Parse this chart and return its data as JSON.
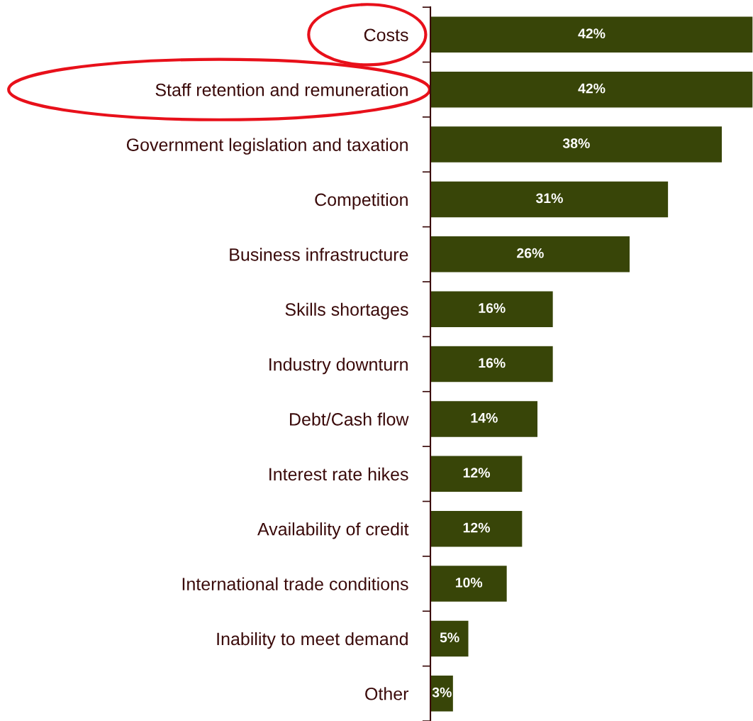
{
  "chart_data": {
    "type": "bar",
    "orientation": "horizontal",
    "categories": [
      "Costs",
      "Staff retention and remuneration",
      "Government legislation and taxation",
      "Competition",
      "Business infrastructure",
      "Skills shortages",
      "Industry downturn",
      "Debt/Cash flow",
      "Interest rate hikes",
      "Availability of credit",
      "International trade conditions",
      "Inability to meet demand",
      "Other"
    ],
    "values": [
      42,
      42,
      38,
      31,
      26,
      16,
      16,
      14,
      12,
      12,
      10,
      5,
      3
    ],
    "value_labels": [
      "42%",
      "42%",
      "38%",
      "31%",
      "26%",
      "16%",
      "16%",
      "14%",
      "12%",
      "12%",
      "10%",
      "5%",
      "3%"
    ],
    "color": "#384508",
    "xlim": [
      0,
      42
    ],
    "tick_labels": "y",
    "grid": false,
    "legend": false
  }
}
